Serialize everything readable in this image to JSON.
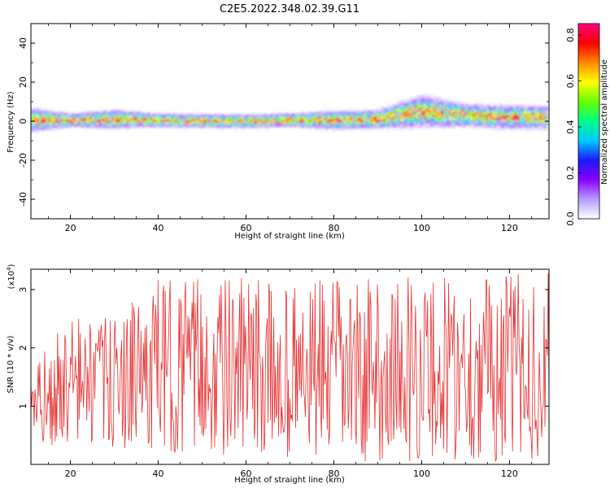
{
  "title": "C2E5.2022.348.02.39.G11",
  "chart_data": [
    {
      "type": "heatmap",
      "xlabel": "Height of straight line (km)",
      "ylabel": "Frequency (Hz)",
      "xlim": [
        11,
        129
      ],
      "ylim": [
        -50,
        50
      ],
      "x_ticks": [
        20,
        40,
        60,
        80,
        100,
        120
      ],
      "y_ticks": [
        -40,
        -20,
        0,
        20,
        40
      ],
      "description_band": {
        "x": [
          12,
          20,
          30,
          40,
          50,
          60,
          70,
          80,
          90,
          100,
          110,
          120,
          128
        ],
        "center_hz": [
          0.5,
          0.5,
          1,
          0.5,
          0,
          0,
          0.5,
          0.5,
          1,
          5,
          3,
          2,
          2
        ],
        "half_width_hz": [
          5,
          3,
          4,
          3,
          3,
          3,
          3,
          4,
          4,
          7,
          5,
          5,
          5
        ]
      },
      "colorbar": {
        "label": "Normalized spectral amplitude",
        "range": [
          0,
          0.85
        ],
        "ticks": [
          "0.0",
          "0.2",
          "0.4",
          "0.6",
          "0.8"
        ],
        "colors": [
          "#ffffff",
          "#b59cff",
          "#8a00ff",
          "#1a1aff",
          "#00c8ff",
          "#00ff88",
          "#66ff00",
          "#ffff00",
          "#ff8800",
          "#ff0000",
          "#ff0080"
        ]
      }
    },
    {
      "type": "line",
      "xlabel": "Height of straight line (km)",
      "ylabel": "SNR (10 * v/v)",
      "y_multiplier": "(x10",
      "y_multiplier_exp": "4",
      "y_multiplier_close": ")",
      "xlim": [
        11,
        129
      ],
      "ylim": [
        0,
        3.35
      ],
      "x_ticks": [
        20,
        40,
        60,
        80,
        100,
        120
      ],
      "y_ticks": [
        1,
        2,
        3
      ],
      "color": "#e53030",
      "envelope": {
        "x": [
          11,
          20,
          30,
          40,
          50,
          60,
          70,
          80,
          90,
          100,
          110,
          120,
          129
        ],
        "min": [
          0.3,
          0.3,
          0.3,
          0.2,
          0.2,
          0.1,
          0.1,
          0.05,
          0.05,
          0.05,
          0.05,
          0.05,
          0.1
        ],
        "max": [
          1.6,
          2.6,
          2.5,
          3.2,
          3.2,
          3.2,
          3.1,
          3.2,
          3.2,
          3.3,
          3.3,
          3.3,
          3.3
        ]
      }
    }
  ]
}
